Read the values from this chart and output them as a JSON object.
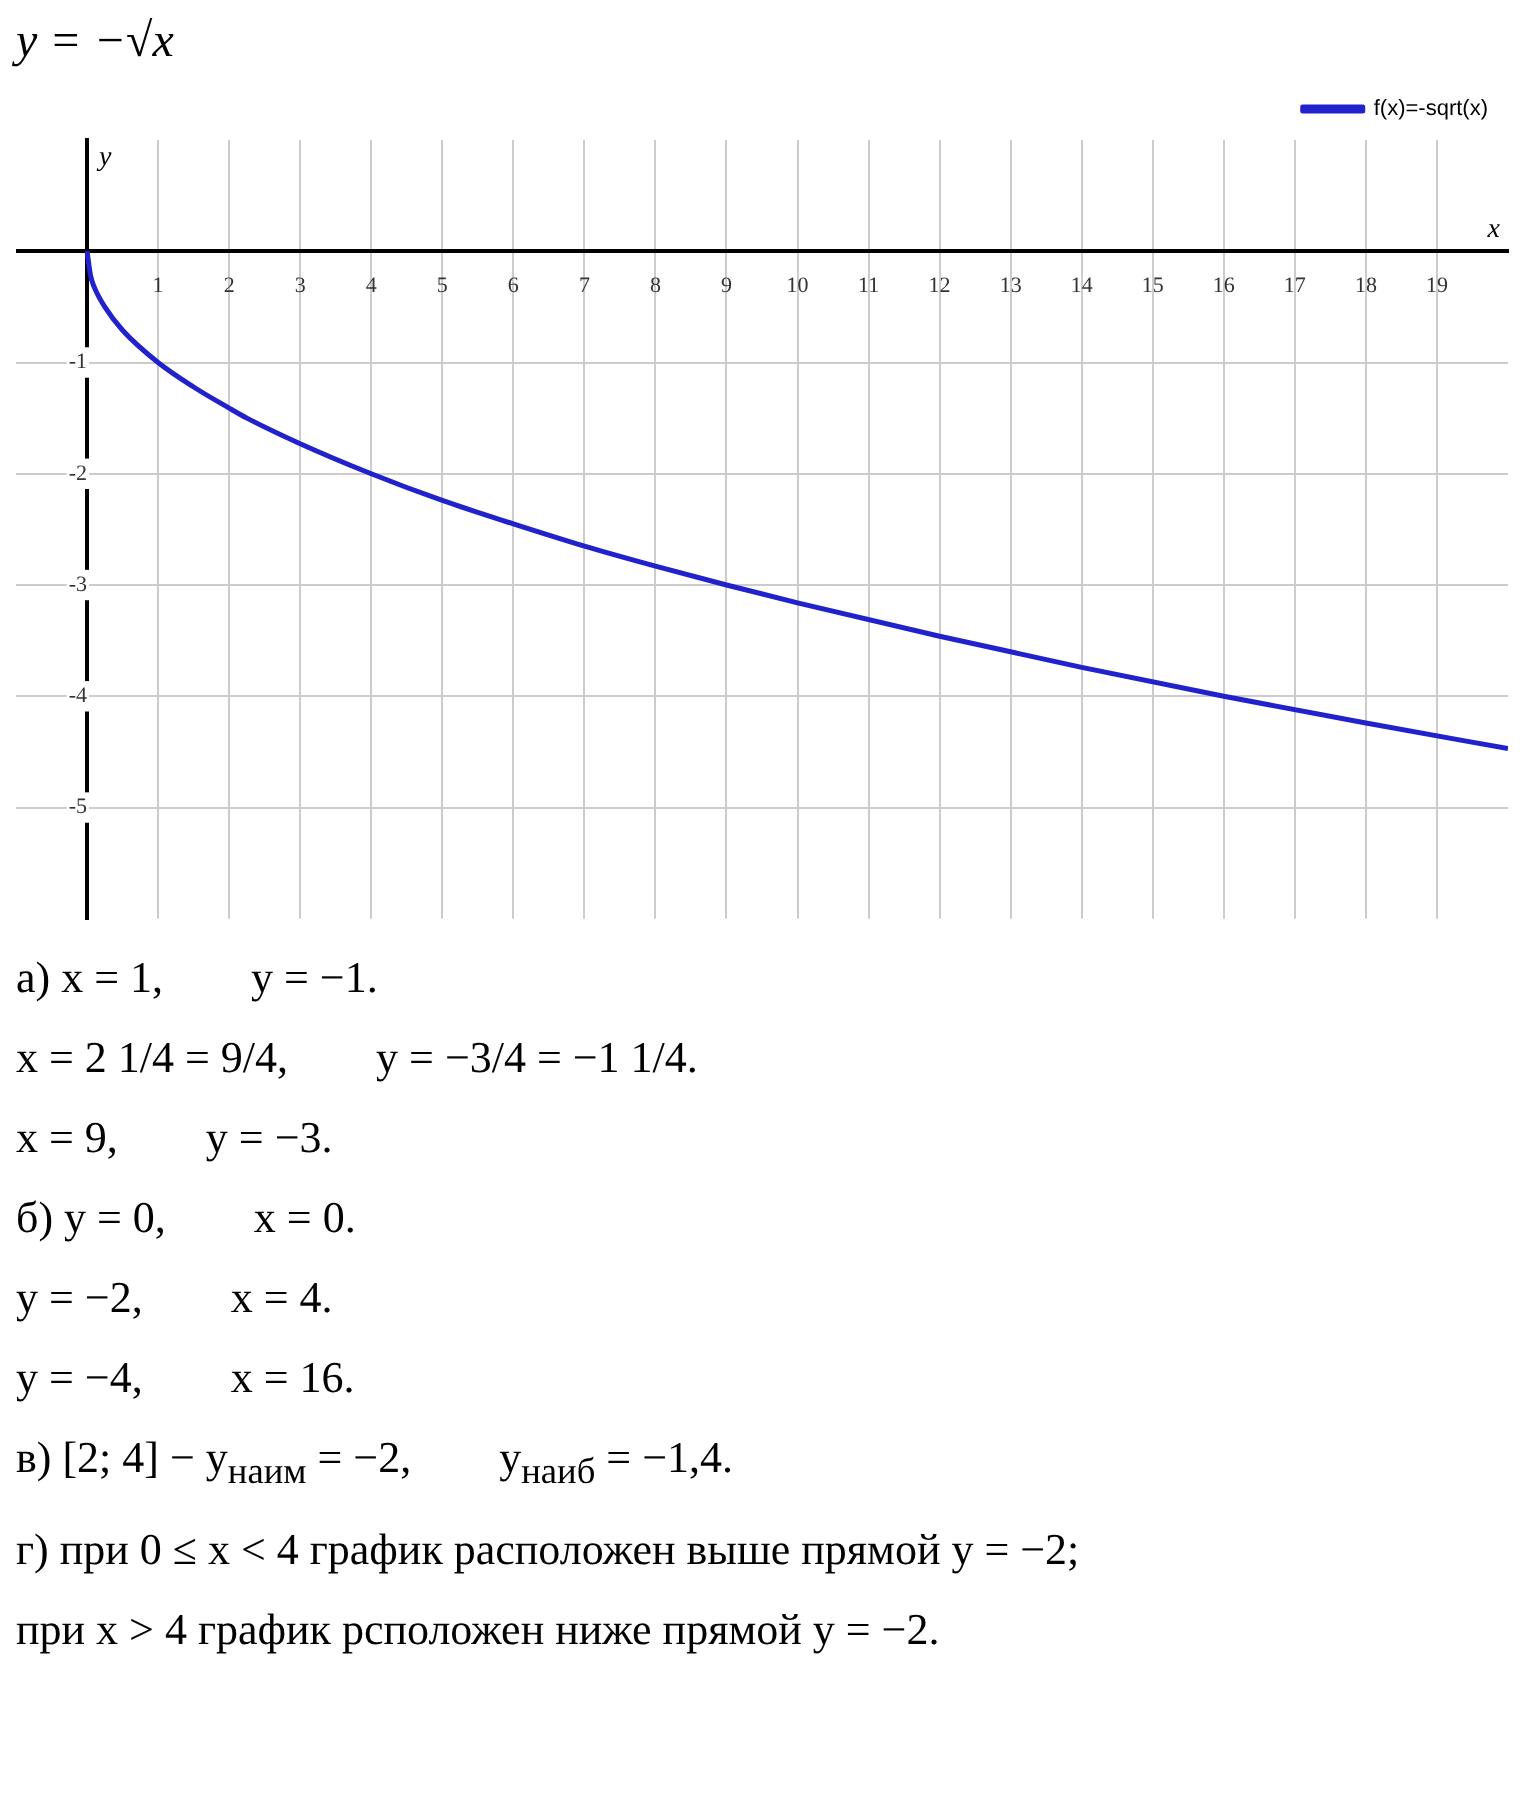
{
  "chart_data": {
    "type": "line",
    "title": "y = −√x",
    "xlabel": "x",
    "ylabel": "y",
    "x": [
      0,
      0.05,
      0.1,
      0.25,
      0.5,
      1,
      1.5,
      2,
      2.25,
      3,
      4,
      5,
      6,
      7,
      8,
      9,
      10,
      12,
      14,
      16,
      18,
      20
    ],
    "series": [
      {
        "name": "f(x)=-sqrt(x)",
        "color": "#2222cc",
        "values": [
          0,
          -0.22,
          -0.32,
          -0.5,
          -0.71,
          -1,
          -1.22,
          -1.41,
          -1.5,
          -1.73,
          -2,
          -2.24,
          -2.45,
          -2.65,
          -2.83,
          -3,
          -3.16,
          -3.46,
          -3.74,
          -4,
          -4.24,
          -4.47
        ]
      }
    ],
    "xlim": [
      -1,
      20
    ],
    "ylim": [
      -6,
      1
    ],
    "xticks": [
      1,
      2,
      3,
      4,
      5,
      6,
      7,
      8,
      9,
      10,
      11,
      12,
      13,
      14,
      15,
      16,
      17,
      18,
      19
    ],
    "yticks": [
      -5,
      -4,
      -3,
      -2,
      -1
    ],
    "grid": true,
    "legend": "top right",
    "marker": "none",
    "line_style": "solid",
    "annotations": [
      "а) x = 1,        y = −1.",
      "x = 2 1/4 = 9/4,        y = −3/4 = −1 1/4.",
      "x = 9,        y = −3.",
      "б) y = 0,        x = 0.",
      "y = −2,        x = 4.",
      "y = −4,        x = 16.",
      "в) [2; 4] − y$_{наим}$ = −2,        y$_{наиб}$ = −1,4.",
      "г) при 0 ≤ x < 4 график расположен выше прямой y = −2;",
      "при x > 4 график рсположен ниже прямой y = −2."
    ]
  }
}
